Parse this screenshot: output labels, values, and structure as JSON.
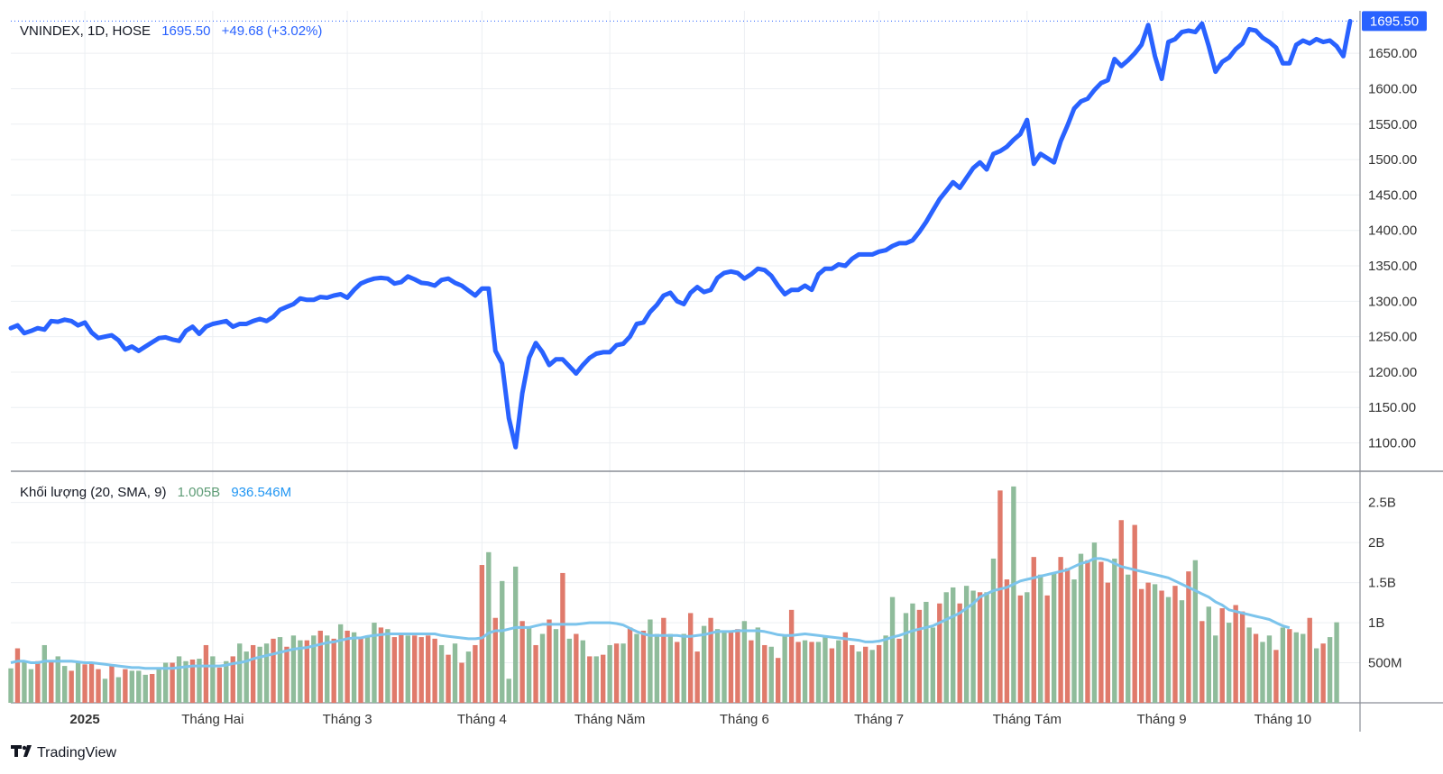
{
  "colors": {
    "line": "#2962ff",
    "up": "#8fbc9b",
    "down": "#e07a6b",
    "sma": "#7cc4ec",
    "grid": "#eceff2",
    "axis_text": "#333333",
    "price_tag_bg": "#2962ff"
  },
  "header": {
    "symbol": "VNINDEX, 1D, HOSE",
    "last": "1695.50",
    "change": "+49.68 (+3.02%)"
  },
  "volume_header": {
    "label": "Khối lượng (20, SMA, 9)",
    "volume": "1.005B",
    "sma": "936.546M"
  },
  "price_tag": "1695.50",
  "brand": "TradingView",
  "chart_data": [
    {
      "type": "line",
      "series": [
        {
          "values": [
            1262,
            1266,
            1255,
            1258,
            1262,
            1260,
            1272,
            1271,
            1274,
            1272,
            1266,
            1270,
            1256,
            1248,
            1250,
            1252,
            1245,
            1232,
            1236,
            1230,
            1236,
            1242,
            1248,
            1249,
            1246,
            1244,
            1258,
            1264,
            1254,
            1264,
            1268,
            1270,
            1272,
            1264,
            1268,
            1268,
            1272,
            1275,
            1272,
            1278,
            1288,
            1292,
            1296,
            1304,
            1302,
            1302,
            1306,
            1305,
            1308,
            1310,
            1305,
            1316,
            1325,
            1329,
            1332,
            1333,
            1332,
            1325,
            1327,
            1335,
            1331,
            1326,
            1325,
            1322,
            1330,
            1332,
            1326,
            1322,
            1315,
            1308,
            1318,
            1318,
            1230,
            1212,
            1135,
            1094,
            1170,
            1220,
            1241,
            1228,
            1210,
            1218,
            1218,
            1208,
            1198,
            1210,
            1220,
            1226,
            1228,
            1228,
            1238,
            1240,
            1250,
            1268,
            1270,
            1285,
            1295,
            1308,
            1312,
            1300,
            1296,
            1312,
            1320,
            1313,
            1316,
            1333,
            1340,
            1342,
            1340,
            1332,
            1338,
            1346,
            1344,
            1336,
            1322,
            1310,
            1316,
            1316,
            1322,
            1316,
            1338,
            1346,
            1346,
            1352,
            1350,
            1360,
            1366,
            1366,
            1366,
            1370,
            1372,
            1378,
            1382,
            1382,
            1386,
            1398,
            1412,
            1428,
            1444,
            1456,
            1468,
            1460,
            1474,
            1488,
            1496,
            1486,
            1508,
            1512,
            1518,
            1528,
            1536,
            1556,
            1494,
            1508,
            1502,
            1496,
            1526,
            1548,
            1572,
            1582,
            1586,
            1598,
            1608,
            1612,
            1642,
            1632,
            1640,
            1650,
            1662,
            1690,
            1646,
            1614,
            1666,
            1670,
            1680,
            1682,
            1680,
            1692,
            1660,
            1624,
            1638,
            1644,
            1656,
            1664,
            1684,
            1682,
            1672,
            1666,
            1658,
            1636,
            1636,
            1662,
            1668,
            1664,
            1670,
            1666,
            1668,
            1660,
            1646,
            1695.5
          ]
        }
      ],
      "x_labels": [
        "2025",
        "Tháng Hai",
        "Tháng 3",
        "Tháng 4",
        "Tháng Năm",
        "Tháng 6",
        "Tháng 7",
        "Tháng Tám",
        "Tháng 9",
        "Tháng 10"
      ],
      "x_label_index": [
        11,
        30,
        50,
        70,
        89,
        109,
        129,
        151,
        171,
        189
      ],
      "y_ticks": [
        "1650.00",
        "1600.00",
        "1550.00",
        "1500.00",
        "1450.00",
        "1400.00",
        "1350.00",
        "1300.00",
        "1250.00",
        "1200.00",
        "1150.00",
        "1100.00"
      ],
      "ylim": [
        1060,
        1710
      ],
      "grid": true
    },
    {
      "type": "bar",
      "series": [
        {
          "values": [
            0.43,
            0.68,
            0.52,
            0.42,
            0.52,
            0.72,
            0.52,
            0.58,
            0.46,
            0.4,
            0.5,
            0.48,
            0.5,
            0.42,
            0.3,
            0.46,
            0.32,
            0.42,
            0.4,
            0.4,
            0.35,
            0.36,
            0.42,
            0.5,
            0.5,
            0.58,
            0.52,
            0.54,
            0.55,
            0.72,
            0.58,
            0.44,
            0.52,
            0.58,
            0.74,
            0.64,
            0.72,
            0.7,
            0.74,
            0.8,
            0.82,
            0.7,
            0.84,
            0.78,
            0.78,
            0.84,
            0.9,
            0.84,
            0.8,
            0.98,
            0.9,
            0.88,
            0.8,
            0.84,
            1.0,
            0.94,
            0.92,
            0.82,
            0.86,
            0.84,
            0.84,
            0.82,
            0.84,
            0.8,
            0.72,
            0.6,
            0.74,
            0.5,
            0.64,
            0.72,
            1.72,
            1.88,
            1.06,
            1.52,
            0.3,
            1.7,
            1.02,
            0.94,
            0.72,
            0.86,
            1.04,
            0.92,
            1.62,
            0.8,
            0.86,
            0.78,
            0.58,
            0.58,
            0.6,
            0.72,
            0.74,
            0.74,
            0.94,
            0.86,
            0.9,
            1.04,
            0.86,
            1.06,
            0.86,
            0.76,
            0.86,
            1.12,
            0.64,
            0.96,
            1.06,
            0.92,
            0.9,
            0.9,
            0.92,
            1.02,
            0.78,
            0.94,
            0.72,
            0.7,
            0.56,
            0.84,
            1.16,
            0.76,
            0.78,
            0.76,
            0.76,
            0.84,
            0.68,
            0.78,
            0.88,
            0.72,
            0.64,
            0.7,
            0.66,
            0.72,
            0.84,
            1.32,
            0.8,
            1.12,
            1.24,
            1.16,
            1.26,
            0.94,
            1.24,
            1.38,
            1.44,
            1.24,
            1.46,
            1.4,
            1.38,
            1.38,
            1.8,
            2.65,
            1.54,
            2.7,
            1.34,
            1.38,
            1.82,
            1.6,
            1.34,
            1.62,
            1.82,
            1.68,
            1.54,
            1.86,
            1.78,
            2.0,
            1.76,
            1.5,
            1.8,
            2.28,
            1.6,
            2.22,
            1.42,
            1.5,
            1.48,
            1.4,
            1.32,
            1.46,
            1.28,
            1.64,
            1.78,
            1.02,
            1.2,
            0.84,
            1.18,
            1.0,
            1.22,
            1.14,
            0.94,
            0.86,
            0.76,
            0.84,
            0.66,
            0.94,
            0.92,
            0.88,
            0.86,
            1.06,
            0.68,
            0.74,
            0.82,
            1.005
          ]
        },
        {
          "values": [
            0.5,
            0.52,
            0.52,
            0.5,
            0.5,
            0.52,
            0.52,
            0.52,
            0.52,
            0.52,
            0.51,
            0.5,
            0.5,
            0.49,
            0.48,
            0.47,
            0.46,
            0.45,
            0.44,
            0.44,
            0.43,
            0.43,
            0.43,
            0.43,
            0.43,
            0.44,
            0.45,
            0.46,
            0.46,
            0.46,
            0.46,
            0.46,
            0.47,
            0.49,
            0.5,
            0.52,
            0.55,
            0.57,
            0.59,
            0.61,
            0.63,
            0.65,
            0.67,
            0.68,
            0.69,
            0.71,
            0.73,
            0.75,
            0.76,
            0.78,
            0.8,
            0.81,
            0.81,
            0.83,
            0.84,
            0.85,
            0.86,
            0.86,
            0.86,
            0.86,
            0.86,
            0.86,
            0.86,
            0.86,
            0.84,
            0.83,
            0.82,
            0.81,
            0.8,
            0.8,
            0.81,
            0.87,
            0.9,
            0.9,
            0.92,
            0.94,
            0.94,
            0.94,
            0.96,
            0.98,
            0.98,
            0.98,
            0.98,
            0.98,
            0.98,
            0.99,
            1.0,
            1.0,
            1.0,
            1.0,
            0.99,
            0.97,
            0.93,
            0.89,
            0.86,
            0.84,
            0.84,
            0.84,
            0.84,
            0.84,
            0.83,
            0.83,
            0.84,
            0.85,
            0.87,
            0.89,
            0.89,
            0.89,
            0.9,
            0.9,
            0.9,
            0.9,
            0.89,
            0.87,
            0.85,
            0.84,
            0.84,
            0.85,
            0.86,
            0.85,
            0.84,
            0.83,
            0.82,
            0.81,
            0.8,
            0.79,
            0.78,
            0.76,
            0.76,
            0.77,
            0.79,
            0.82,
            0.84,
            0.87,
            0.9,
            0.92,
            0.94,
            0.96,
            1.0,
            1.04,
            1.08,
            1.12,
            1.18,
            1.24,
            1.32,
            1.36,
            1.4,
            1.42,
            1.44,
            1.48,
            1.52,
            1.54,
            1.56,
            1.58,
            1.6,
            1.62,
            1.64,
            1.66,
            1.7,
            1.74,
            1.76,
            1.8,
            1.8,
            1.78,
            1.74,
            1.7,
            1.68,
            1.66,
            1.64,
            1.62,
            1.6,
            1.58,
            1.56,
            1.52,
            1.48,
            1.44,
            1.4,
            1.36,
            1.32,
            1.26,
            1.22,
            1.16,
            1.14,
            1.12,
            1.1,
            1.08,
            1.06,
            1.04,
            1.0,
            0.96,
            0.936546
          ]
        }
      ],
      "colors_up_down": [
        "up",
        "down",
        "up",
        "up",
        "down",
        "up",
        "down",
        "up",
        "up",
        "down",
        "up",
        "down",
        "down",
        "down",
        "up",
        "down",
        "up",
        "down",
        "up",
        "up",
        "up",
        "down",
        "up",
        "up",
        "down",
        "up",
        "up",
        "down",
        "up",
        "down",
        "up",
        "down",
        "up",
        "down",
        "up",
        "up",
        "down",
        "up",
        "up",
        "down",
        "up",
        "down",
        "up",
        "up",
        "down",
        "up",
        "down",
        "up",
        "down",
        "up",
        "down",
        "up",
        "down",
        "up",
        "up",
        "down",
        "up",
        "down",
        "down",
        "up",
        "down",
        "down",
        "down",
        "down",
        "up",
        "down",
        "up",
        "down",
        "up",
        "down",
        "down",
        "up",
        "down",
        "up",
        "up",
        "up",
        "down",
        "up",
        "down",
        "up",
        "down",
        "up",
        "down",
        "up",
        "down",
        "up",
        "down",
        "up",
        "down",
        "up",
        "down",
        "up",
        "down",
        "up",
        "down",
        "up",
        "up",
        "down",
        "up",
        "down",
        "up",
        "down",
        "down",
        "up",
        "down",
        "up",
        "up",
        "down",
        "down",
        "up",
        "down",
        "up",
        "down",
        "up",
        "down",
        "up",
        "down",
        "down",
        "up",
        "down",
        "up",
        "up",
        "down",
        "up",
        "down",
        "down",
        "up",
        "down",
        "up",
        "down",
        "up",
        "up",
        "down",
        "up",
        "up",
        "down",
        "up",
        "up",
        "down",
        "up",
        "up",
        "down",
        "up",
        "up",
        "down",
        "up",
        "up",
        "down",
        "down",
        "up",
        "down",
        "up",
        "down",
        "up",
        "down",
        "up",
        "down",
        "down",
        "up",
        "up",
        "down",
        "up",
        "down",
        "down",
        "up",
        "down",
        "up",
        "down",
        "down",
        "down",
        "up",
        "down",
        "up",
        "down",
        "up",
        "down",
        "up",
        "down",
        "up",
        "up",
        "down",
        "up",
        "down",
        "down",
        "up",
        "down",
        "up",
        "up",
        "down",
        "up",
        "down",
        "up",
        "up",
        "down",
        "up",
        "down",
        "up",
        "up",
        "down",
        "up",
        "down",
        "up"
      ],
      "y_ticks": [
        "2.5B",
        "2B",
        "1.5B",
        "1B",
        "500M"
      ],
      "ylim": [
        0,
        2.8
      ],
      "grid": true
    }
  ]
}
